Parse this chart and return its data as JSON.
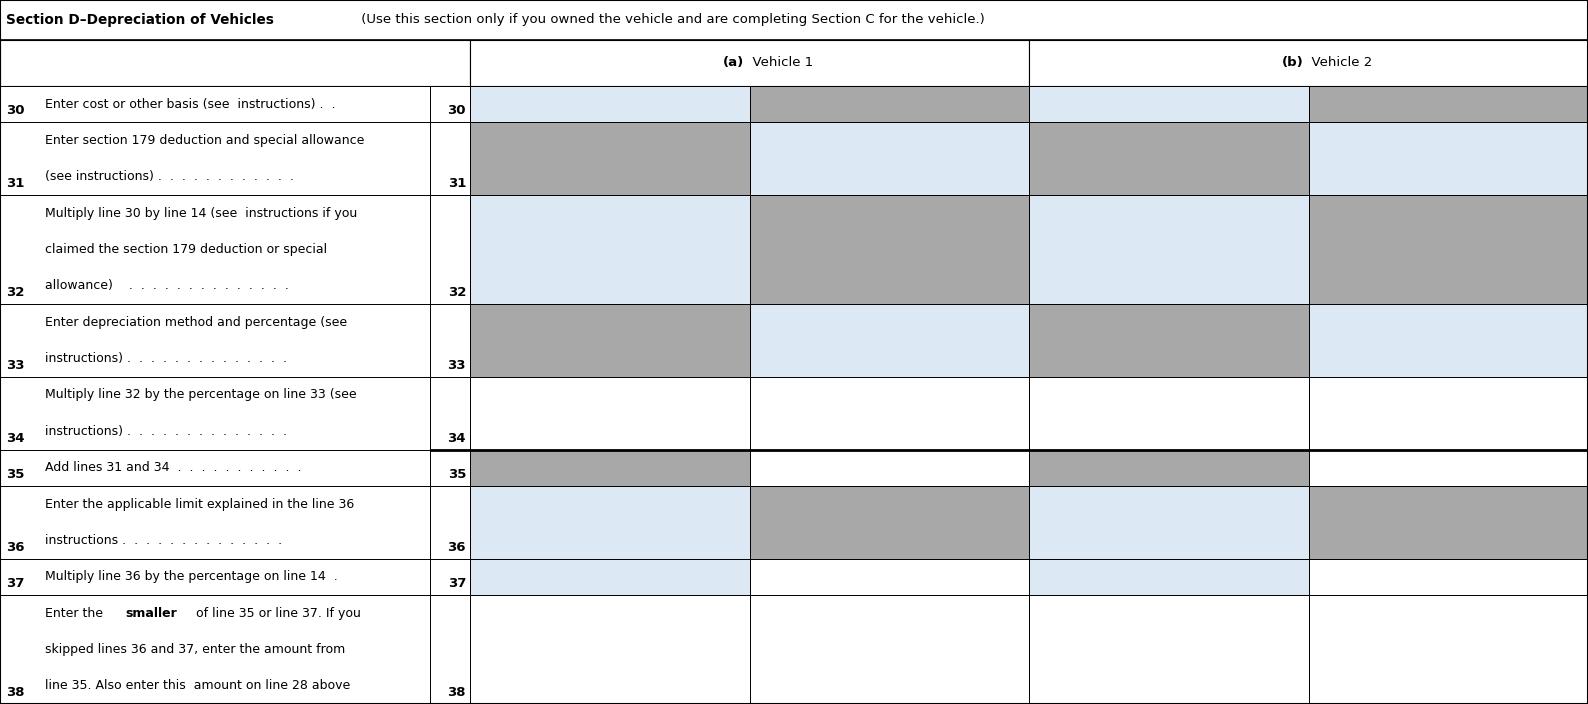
{
  "title_bold": "Section D–Depreciation of Vehicles",
  "title_normal": " (Use this section only if you owned the vehicle and are completing Section C for the vehicle.)",
  "col_a_label": "(a)",
  "col_a_text": "  Vehicle 1",
  "col_b_label": "(b)",
  "col_b_text": "  Vehicle 2",
  "rows": [
    {
      "line_num": "30",
      "text_lines": [
        "Enter cost or other basis (see  instructions) .  ."
      ],
      "bold_words": []
    },
    {
      "line_num": "31",
      "text_lines": [
        "Enter section 179 deduction and special allowance",
        "(see instructions) .  .  .  .  .  .  .  .  .  .  .  ."
      ],
      "bold_words": []
    },
    {
      "line_num": "32",
      "text_lines": [
        "Multiply line 30 by line 14 (see  instructions if you",
        "claimed the section 179 deduction or special",
        "allowance)    .  .  .  .  .  .  .  .  .  .  .  .  .  ."
      ],
      "bold_words": []
    },
    {
      "line_num": "33",
      "text_lines": [
        "Enter depreciation method and percentage (see",
        "instructions) .  .  .  .  .  .  .  .  .  .  .  .  .  ."
      ],
      "bold_words": []
    },
    {
      "line_num": "34",
      "text_lines": [
        "Multiply line 32 by the percentage on line 33 (see",
        "instructions) .  .  .  .  .  .  .  .  .  .  .  .  .  ."
      ],
      "bold_words": []
    },
    {
      "line_num": "35",
      "text_lines": [
        "Add lines 31 and 34  .  .  .  .  .  .  .  .  .  .  ."
      ],
      "bold_words": []
    },
    {
      "line_num": "36",
      "text_lines": [
        "Enter the applicable limit explained in the line 36",
        "instructions .  .  .  .  .  .  .  .  .  .  .  .  .  ."
      ],
      "bold_words": []
    },
    {
      "line_num": "37",
      "text_lines": [
        "Multiply line 36 by the percentage on line 14  ."
      ],
      "bold_words": []
    },
    {
      "line_num": "38",
      "text_lines": [
        "Enter the ",
        "smaller",
        " of line 35 or line 37. If you",
        "skipped lines 36 and 37, enter the amount from",
        "line 35. Also enter this  amount on line 28 above"
      ],
      "bold_words": [
        "smaller"
      ],
      "special": "bold_inline"
    }
  ],
  "row_colors": [
    [
      "#dce9f5",
      "#a8a8a8",
      "#dce9f5",
      "#a8a8a8"
    ],
    [
      "#a8a8a8",
      "#dce9f5",
      "#a8a8a8",
      "#dce9f5"
    ],
    [
      "#dce9f5",
      "#a8a8a8",
      "#dce9f5",
      "#a8a8a8"
    ],
    [
      "#a8a8a8",
      "#dce9f5",
      "#a8a8a8",
      "#dce9f5"
    ],
    [
      "#ffffff",
      "#ffffff",
      "#ffffff",
      "#ffffff"
    ],
    [
      "#a8a8a8",
      "#ffffff",
      "#a8a8a8",
      "#ffffff"
    ],
    [
      "#dce9f5",
      "#a8a8a8",
      "#dce9f5",
      "#a8a8a8"
    ],
    [
      "#dce9f5",
      "#ffffff",
      "#dce9f5",
      "#ffffff"
    ],
    [
      "#ffffff",
      "#ffffff",
      "#ffffff",
      "#ffffff"
    ]
  ],
  "color_gray": "#a8a8a8",
  "color_light_blue": "#dce9f5",
  "color_white": "#ffffff",
  "background": "#ffffff",
  "fig_width": 15.88,
  "fig_height": 7.04
}
